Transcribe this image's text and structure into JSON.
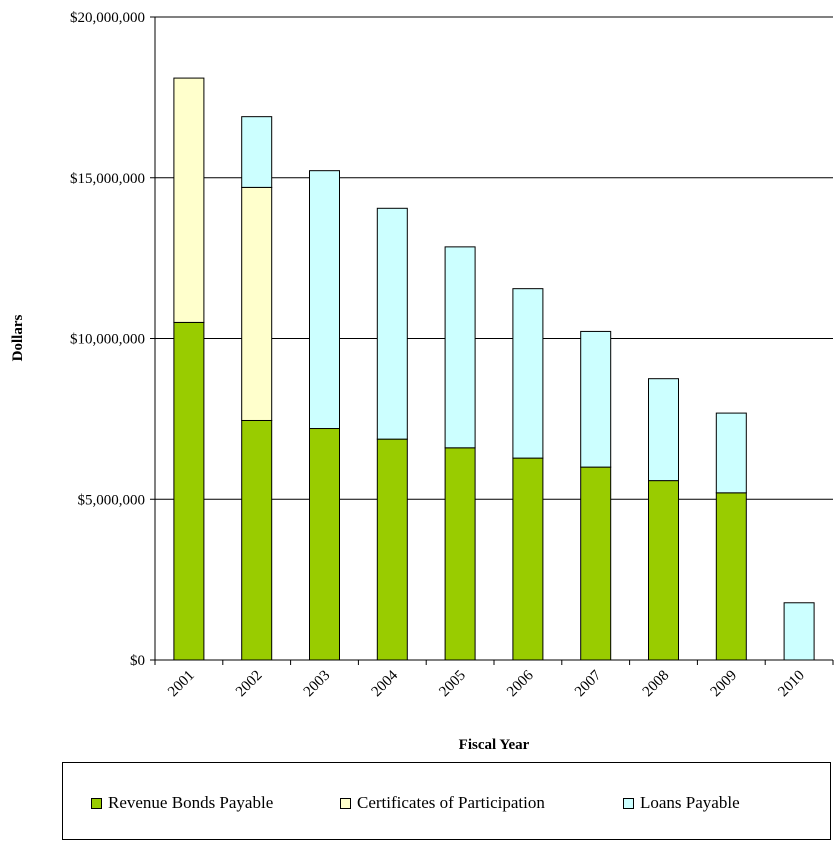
{
  "chart_data": {
    "type": "bar",
    "stacked": true,
    "title": "",
    "xlabel": "Fiscal Year",
    "ylabel": "Dollars",
    "categories": [
      "2001",
      "2002",
      "2003",
      "2004",
      "2005",
      "2006",
      "2007",
      "2008",
      "2009",
      "2010"
    ],
    "ylim": [
      0,
      20000000
    ],
    "yticks": [
      0,
      5000000,
      10000000,
      15000000,
      20000000
    ],
    "ytick_labels": [
      "$0",
      "$5,000,000",
      "$10,000,000",
      "$15,000,000",
      "$20,000,000"
    ],
    "grid": true,
    "legend_position": "bottom",
    "series": [
      {
        "name": "Revenue Bonds Payable",
        "color": "#99cc00",
        "values": [
          10500000,
          7450000,
          7200000,
          6870000,
          6600000,
          6280000,
          6000000,
          5580000,
          5200000,
          0
        ]
      },
      {
        "name": "Certificates of Participation",
        "color": "#ffffcc",
        "values": [
          7600000,
          7250000,
          0,
          0,
          0,
          0,
          0,
          0,
          0,
          0
        ]
      },
      {
        "name": "Loans Payable",
        "color": "#ccffff",
        "values": [
          0,
          2200000,
          8020000,
          7180000,
          6250000,
          5270000,
          4220000,
          3170000,
          2480000,
          1780000
        ]
      }
    ]
  }
}
